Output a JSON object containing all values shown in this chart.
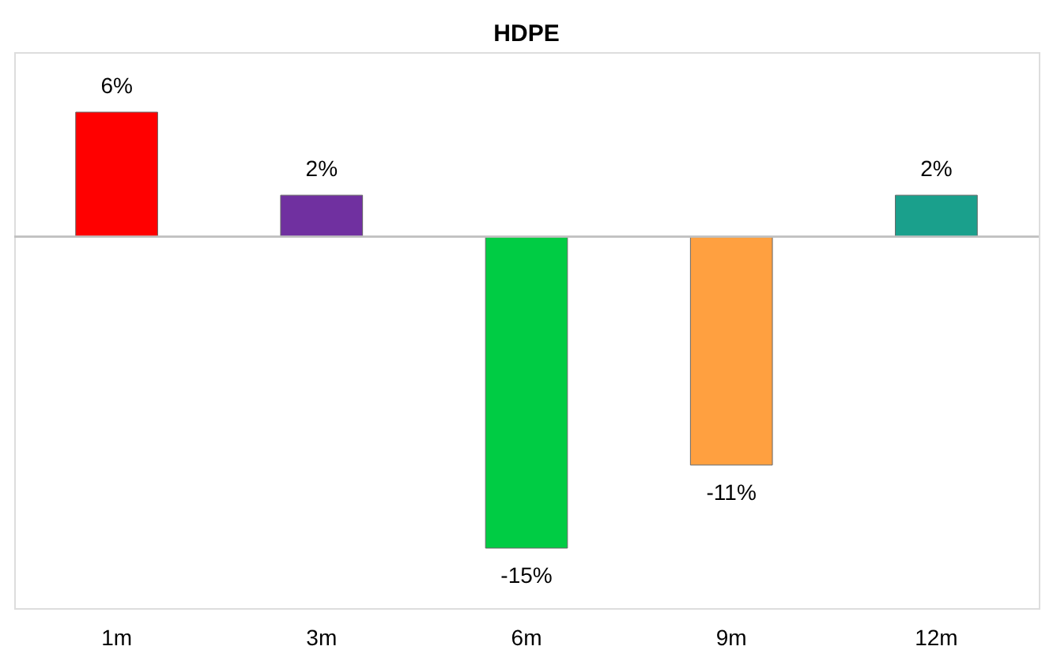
{
  "chart_data": {
    "type": "bar",
    "title": "HDPE",
    "categories": [
      "1m",
      "3m",
      "6m",
      "9m",
      "12m"
    ],
    "values": [
      6,
      2,
      -15,
      -11,
      2
    ],
    "colors": [
      "#ff0000",
      "#7030a0",
      "#00cc44",
      "#ffa040",
      "#1aa08c"
    ],
    "value_labels": [
      "6%",
      "2%",
      "-15%",
      "-11%",
      "2%"
    ],
    "grid": false
  }
}
